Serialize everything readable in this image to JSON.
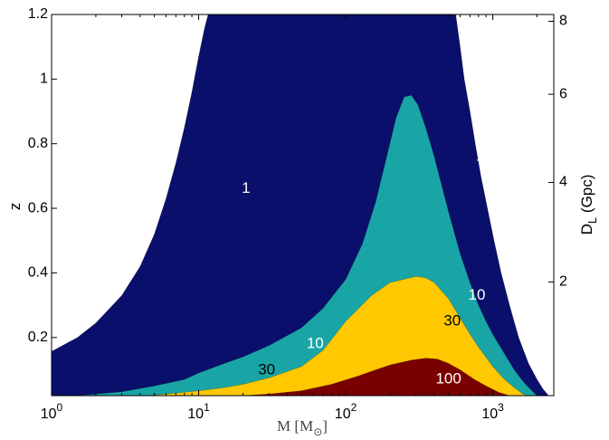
{
  "chart_data": {
    "type": "area",
    "xlabel": "M [M",
    "xlabel_sub": "⊙",
    "xlabel_close": "]",
    "ylabel": "z",
    "ylabel_right": "D",
    "ylabel_right_sub": "L",
    "ylabel_right_unit": " (Gpc)",
    "x_scale": "log",
    "xlim": [
      1,
      2600
    ],
    "ylim": [
      0.02,
      1.2
    ],
    "x_ticks": [
      {
        "value": 1,
        "base": "10",
        "exp": "0"
      },
      {
        "value": 10,
        "base": "10",
        "exp": "1"
      },
      {
        "value": 100,
        "base": "10",
        "exp": "2"
      },
      {
        "value": 1000,
        "base": "10",
        "exp": "3"
      }
    ],
    "y_ticks": [
      {
        "value": 0.2,
        "label": "0.2"
      },
      {
        "value": 0.4,
        "label": "0.4"
      },
      {
        "value": 0.6,
        "label": "0.6"
      },
      {
        "value": 0.8,
        "label": "0.8"
      },
      {
        "value": 1.0,
        "label": "1"
      },
      {
        "value": 1.2,
        "label": "1.2"
      }
    ],
    "y2_ticks": [
      {
        "z": 0.372,
        "label": "2"
      },
      {
        "z": 0.68,
        "label": "4"
      },
      {
        "z": 0.953,
        "label": "6"
      },
      {
        "z": 1.179,
        "label": "8"
      }
    ],
    "grid": false,
    "series": [
      {
        "name": "1",
        "color": "#0a0f6b",
        "label_color": "#ffffff",
        "labels": [
          {
            "m": 21,
            "z": 0.66
          },
          {
            "m": 820,
            "z": 0.76
          }
        ],
        "upper": [
          [
            1,
            0.157
          ],
          [
            1.5,
            0.2
          ],
          [
            2,
            0.245
          ],
          [
            3,
            0.33
          ],
          [
            4,
            0.42
          ],
          [
            5,
            0.52
          ],
          [
            6,
            0.63
          ],
          [
            7,
            0.74
          ],
          [
            8,
            0.85
          ],
          [
            9,
            0.96
          ],
          [
            10,
            1.07
          ],
          [
            11,
            1.16
          ],
          [
            11.6,
            1.2
          ]
        ],
        "lower": [
          [
            560,
            1.2
          ],
          [
            600,
            1.1
          ],
          [
            640,
            1.0
          ],
          [
            700,
            0.9
          ],
          [
            760,
            0.8
          ],
          [
            830,
            0.7
          ],
          [
            920,
            0.6
          ],
          [
            1020,
            0.5
          ],
          [
            1140,
            0.4
          ],
          [
            1300,
            0.3
          ],
          [
            1500,
            0.2
          ],
          [
            1750,
            0.12
          ],
          [
            2000,
            0.07
          ],
          [
            2200,
            0.04
          ],
          [
            2400,
            0.02
          ]
        ]
      },
      {
        "name": "10",
        "color": "#19a5a5",
        "label_color": "#ffffff",
        "labels": [
          {
            "m": 62,
            "z": 0.18
          },
          {
            "m": 780,
            "z": 0.33
          }
        ],
        "curve": [
          [
            1.5,
            0.02
          ],
          [
            2,
            0.025
          ],
          [
            3,
            0.032
          ],
          [
            5,
            0.05
          ],
          [
            8,
            0.07
          ],
          [
            10,
            0.09
          ],
          [
            15,
            0.12
          ],
          [
            20,
            0.14
          ],
          [
            30,
            0.175
          ],
          [
            50,
            0.23
          ],
          [
            70,
            0.29
          ],
          [
            100,
            0.38
          ],
          [
            130,
            0.49
          ],
          [
            160,
            0.62
          ],
          [
            190,
            0.76
          ],
          [
            220,
            0.88
          ],
          [
            250,
            0.945
          ],
          [
            280,
            0.95
          ],
          [
            310,
            0.92
          ],
          [
            350,
            0.85
          ],
          [
            400,
            0.76
          ],
          [
            450,
            0.67
          ],
          [
            500,
            0.59
          ],
          [
            600,
            0.46
          ],
          [
            700,
            0.37
          ],
          [
            800,
            0.3
          ],
          [
            900,
            0.25
          ],
          [
            1000,
            0.21
          ],
          [
            1200,
            0.15
          ],
          [
            1400,
            0.1
          ],
          [
            1600,
            0.065
          ],
          [
            1800,
            0.04
          ],
          [
            2000,
            0.02
          ]
        ]
      },
      {
        "name": "30",
        "color": "#ffc800",
        "label_color": "#000000",
        "labels": [
          {
            "m": 29,
            "z": 0.099
          },
          {
            "m": 530,
            "z": 0.25
          }
        ],
        "curve": [
          [
            4.5,
            0.02
          ],
          [
            6,
            0.025
          ],
          [
            8,
            0.03
          ],
          [
            10,
            0.035
          ],
          [
            15,
            0.045
          ],
          [
            20,
            0.055
          ],
          [
            30,
            0.075
          ],
          [
            50,
            0.11
          ],
          [
            70,
            0.16
          ],
          [
            100,
            0.25
          ],
          [
            150,
            0.33
          ],
          [
            200,
            0.37
          ],
          [
            300,
            0.389
          ],
          [
            350,
            0.385
          ],
          [
            400,
            0.37
          ],
          [
            500,
            0.32
          ],
          [
            600,
            0.26
          ],
          [
            700,
            0.21
          ],
          [
            800,
            0.17
          ],
          [
            1000,
            0.11
          ],
          [
            1200,
            0.07
          ],
          [
            1400,
            0.045
          ],
          [
            1600,
            0.025
          ],
          [
            1700,
            0.02
          ]
        ]
      },
      {
        "name": "100",
        "color": "#7a0000",
        "label_color": "#ffffff",
        "labels": [
          {
            "m": 500,
            "z": 0.07
          }
        ],
        "curve": [
          [
            20,
            0.02
          ],
          [
            30,
            0.025
          ],
          [
            50,
            0.035
          ],
          [
            80,
            0.055
          ],
          [
            120,
            0.08
          ],
          [
            160,
            0.1
          ],
          [
            200,
            0.115
          ],
          [
            280,
            0.13
          ],
          [
            350,
            0.136
          ],
          [
            420,
            0.133
          ],
          [
            500,
            0.12
          ],
          [
            600,
            0.1
          ],
          [
            750,
            0.07
          ],
          [
            900,
            0.05
          ],
          [
            1100,
            0.03
          ],
          [
            1300,
            0.02
          ]
        ]
      }
    ]
  }
}
